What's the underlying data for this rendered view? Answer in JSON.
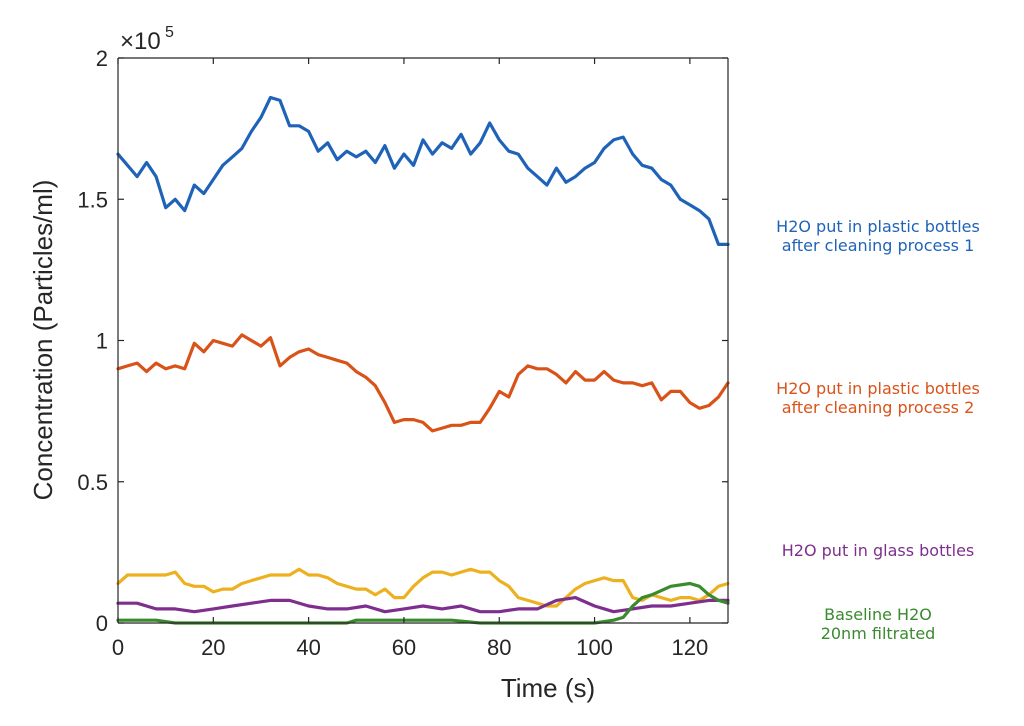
{
  "chart_data": {
    "type": "line",
    "title": "",
    "xlabel": "Time (s)",
    "ylabel": "Concentration (Particles/ml)",
    "y_exponent_label": "×10",
    "y_exponent_power": "5",
    "xlim": [
      0,
      128
    ],
    "ylim": [
      0,
      2
    ],
    "xticks": [
      "0",
      "20",
      "40",
      "60",
      "80",
      "100",
      "120"
    ],
    "yticks": [
      "0",
      "0.5",
      "1",
      "1.5",
      "2"
    ],
    "ytick_values": [
      0,
      0.5,
      1,
      1.5,
      2
    ],
    "xtick_values": [
      0,
      20,
      40,
      60,
      80,
      100,
      120
    ],
    "grid": false,
    "legend_placement": "right",
    "series": [
      {
        "key": "blue",
        "color": "#1f63b8",
        "legend_lines": [
          "H2O put in plastic bottles",
          "after cleaning process 1"
        ],
        "x": [
          0,
          2,
          4,
          6,
          8,
          10,
          12,
          14,
          16,
          18,
          20,
          22,
          24,
          26,
          28,
          30,
          32,
          34,
          36,
          38,
          40,
          42,
          44,
          46,
          48,
          50,
          52,
          54,
          56,
          58,
          60,
          62,
          64,
          66,
          68,
          70,
          72,
          74,
          76,
          78,
          80,
          82,
          84,
          86,
          88,
          90,
          92,
          94,
          96,
          98,
          100,
          102,
          104,
          106,
          108,
          110,
          112,
          114,
          116,
          118,
          120,
          122,
          124,
          126,
          128
        ],
        "y": [
          1.66,
          1.62,
          1.58,
          1.63,
          1.58,
          1.47,
          1.5,
          1.46,
          1.55,
          1.52,
          1.57,
          1.62,
          1.65,
          1.68,
          1.74,
          1.79,
          1.86,
          1.85,
          1.76,
          1.76,
          1.74,
          1.67,
          1.7,
          1.64,
          1.67,
          1.65,
          1.67,
          1.63,
          1.69,
          1.61,
          1.66,
          1.62,
          1.71,
          1.66,
          1.7,
          1.68,
          1.73,
          1.66,
          1.7,
          1.77,
          1.71,
          1.67,
          1.66,
          1.61,
          1.58,
          1.55,
          1.61,
          1.56,
          1.58,
          1.61,
          1.63,
          1.68,
          1.71,
          1.72,
          1.66,
          1.62,
          1.61,
          1.57,
          1.55,
          1.5,
          1.48,
          1.46,
          1.43,
          1.34,
          1.34
        ]
      },
      {
        "key": "red",
        "color": "#d95319",
        "legend_lines": [
          "H2O put in plastic bottles",
          "after cleaning process 2"
        ],
        "x": [
          0,
          2,
          4,
          6,
          8,
          10,
          12,
          14,
          16,
          18,
          20,
          22,
          24,
          26,
          28,
          30,
          32,
          34,
          36,
          38,
          40,
          42,
          44,
          46,
          48,
          50,
          52,
          54,
          56,
          58,
          60,
          62,
          64,
          66,
          68,
          70,
          72,
          74,
          76,
          78,
          80,
          82,
          84,
          86,
          88,
          90,
          92,
          94,
          96,
          98,
          100,
          102,
          104,
          106,
          108,
          110,
          112,
          114,
          116,
          118,
          120,
          122,
          124,
          126,
          128
        ],
        "y": [
          0.9,
          0.91,
          0.92,
          0.89,
          0.92,
          0.9,
          0.91,
          0.9,
          0.99,
          0.96,
          1.0,
          0.99,
          0.98,
          1.02,
          1.0,
          0.98,
          1.01,
          0.91,
          0.94,
          0.96,
          0.97,
          0.95,
          0.94,
          0.93,
          0.92,
          0.89,
          0.87,
          0.84,
          0.78,
          0.71,
          0.72,
          0.72,
          0.71,
          0.68,
          0.69,
          0.7,
          0.7,
          0.71,
          0.71,
          0.76,
          0.82,
          0.8,
          0.88,
          0.91,
          0.9,
          0.9,
          0.88,
          0.85,
          0.89,
          0.86,
          0.86,
          0.89,
          0.86,
          0.85,
          0.85,
          0.84,
          0.85,
          0.79,
          0.82,
          0.82,
          0.78,
          0.76,
          0.77,
          0.8,
          0.85
        ]
      },
      {
        "key": "yellow",
        "color": "#edb120",
        "legend_lines": [],
        "x": [
          0,
          2,
          4,
          6,
          8,
          10,
          12,
          14,
          16,
          18,
          20,
          22,
          24,
          26,
          28,
          30,
          32,
          34,
          36,
          38,
          40,
          42,
          44,
          46,
          48,
          50,
          52,
          54,
          56,
          58,
          60,
          62,
          64,
          66,
          68,
          70,
          72,
          74,
          76,
          78,
          80,
          82,
          84,
          86,
          88,
          90,
          92,
          94,
          96,
          98,
          100,
          102,
          104,
          106,
          108,
          110,
          112,
          114,
          116,
          118,
          120,
          122,
          124,
          126,
          128
        ],
        "y": [
          0.14,
          0.17,
          0.17,
          0.17,
          0.17,
          0.17,
          0.18,
          0.14,
          0.13,
          0.13,
          0.11,
          0.12,
          0.12,
          0.14,
          0.15,
          0.16,
          0.17,
          0.17,
          0.17,
          0.19,
          0.17,
          0.17,
          0.16,
          0.14,
          0.13,
          0.12,
          0.12,
          0.1,
          0.12,
          0.09,
          0.09,
          0.13,
          0.16,
          0.18,
          0.18,
          0.17,
          0.18,
          0.19,
          0.18,
          0.18,
          0.15,
          0.13,
          0.09,
          0.08,
          0.07,
          0.06,
          0.06,
          0.09,
          0.12,
          0.14,
          0.15,
          0.16,
          0.15,
          0.15,
          0.09,
          0.08,
          0.1,
          0.09,
          0.08,
          0.09,
          0.09,
          0.08,
          0.1,
          0.13,
          0.14
        ]
      },
      {
        "key": "purple",
        "color": "#7e2f8e",
        "legend_lines": [
          "H2O put in glass bottles"
        ],
        "x": [
          0,
          4,
          8,
          12,
          16,
          20,
          24,
          28,
          32,
          36,
          40,
          44,
          48,
          52,
          56,
          60,
          64,
          68,
          72,
          76,
          80,
          84,
          88,
          92,
          96,
          100,
          104,
          108,
          112,
          116,
          120,
          124,
          128
        ],
        "y": [
          0.07,
          0.07,
          0.05,
          0.05,
          0.04,
          0.05,
          0.06,
          0.07,
          0.08,
          0.08,
          0.06,
          0.05,
          0.05,
          0.06,
          0.04,
          0.05,
          0.06,
          0.05,
          0.06,
          0.04,
          0.04,
          0.05,
          0.05,
          0.08,
          0.09,
          0.06,
          0.04,
          0.05,
          0.06,
          0.06,
          0.07,
          0.08,
          0.08
        ]
      },
      {
        "key": "green",
        "color": "#3a8a2e",
        "legend_lines": [
          "Baseline H2O",
          "20nm filtrated"
        ],
        "x": [
          0,
          8,
          12,
          16,
          20,
          30,
          40,
          48,
          50,
          56,
          60,
          70,
          76,
          80,
          90,
          96,
          100,
          104,
          106,
          108,
          110,
          112,
          116,
          120,
          122,
          124,
          126,
          128
        ],
        "y": [
          0.01,
          0.01,
          0.0,
          0.0,
          0.0,
          0.0,
          0.0,
          0.0,
          0.01,
          0.01,
          0.01,
          0.01,
          0.0,
          0.0,
          0.0,
          0.0,
          0.0,
          0.01,
          0.02,
          0.06,
          0.09,
          0.1,
          0.13,
          0.14,
          0.13,
          0.1,
          0.08,
          0.07
        ]
      }
    ]
  }
}
